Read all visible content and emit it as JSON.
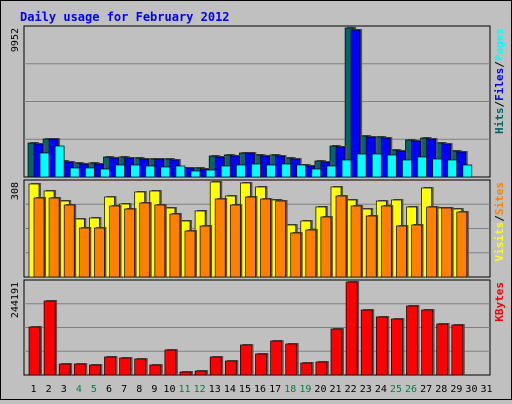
{
  "chart_data": {
    "type": "bar",
    "title": "Daily usage for February 2012",
    "days": [
      "1",
      "2",
      "3",
      "4",
      "5",
      "6",
      "7",
      "8",
      "9",
      "10",
      "11",
      "12",
      "13",
      "14",
      "15",
      "16",
      "17",
      "18",
      "19",
      "20",
      "21",
      "22",
      "23",
      "24",
      "25",
      "26",
      "27",
      "28",
      "29",
      "30",
      "31"
    ],
    "weekend_days": [
      4,
      5,
      11,
      12,
      18,
      19,
      25,
      26
    ],
    "colors": {
      "background": "#c0c0c0",
      "title": "#0000ff",
      "weekday_label": "#000000",
      "weekend_label": "#008040",
      "hits": "#006666",
      "files": "#0000ff",
      "pages": "#00ffff",
      "visits": "#ffff00",
      "sites": "#ff8000",
      "kbytes": "#ff0000",
      "divider": "#777777"
    },
    "panels": [
      {
        "name": "hits-files-pages",
        "max_label": "9952",
        "ymax": 9952,
        "legend": [
          {
            "text": "Hits",
            "color": "#006666"
          },
          {
            "text": "/",
            "color": "#000000"
          },
          {
            "text": "Files",
            "color": "#0000ff"
          },
          {
            "text": "/",
            "color": "#000000"
          },
          {
            "text": "Pages",
            "color": "#00ffff"
          }
        ],
        "series": [
          {
            "name": "Hits",
            "color": "#006666",
            "values": [
              2257,
              2560,
              1040,
              930,
              930,
              1330,
              1330,
              1280,
              1230,
              1180,
              620,
              570,
              1380,
              1480,
              1630,
              1480,
              1480,
              1280,
              810,
              1060,
              2040,
              9952,
              2710,
              2660,
              1780,
              2460,
              2600,
              2260,
              1730,
              0,
              0
            ]
          },
          {
            "name": "Files",
            "color": "#0000ff",
            "values": [
              2200,
              2510,
              1000,
              880,
              880,
              1280,
              1280,
              1230,
              1180,
              1130,
              570,
              520,
              1330,
              1430,
              1580,
              1430,
              1430,
              1230,
              760,
              1010,
              1990,
              9850,
              2660,
              2610,
              1730,
              2410,
              2550,
              2210,
              1680,
              0,
              0
            ]
          },
          {
            "name": "Pages",
            "color": "#00ffff",
            "values": [
              1580,
              2050,
              620,
              570,
              520,
              770,
              770,
              720,
              680,
              720,
              420,
              460,
              720,
              770,
              870,
              820,
              870,
              770,
              530,
              730,
              1160,
              1510,
              1530,
              1480,
              1160,
              1330,
              1230,
              1160,
              820,
              0,
              0
            ]
          }
        ]
      },
      {
        "name": "visits-sites",
        "max_label": "308",
        "ymax": 308,
        "legend": [
          {
            "text": "Visits",
            "color": "#ffff00"
          },
          {
            "text": "/",
            "color": "#000000"
          },
          {
            "text": "Sites",
            "color": "#ff8000"
          }
        ],
        "series": [
          {
            "name": "Visits",
            "color": "#ffff00",
            "values": [
              300,
              280,
              248,
              187,
              190,
              258,
              236,
              276,
              280,
              225,
              180,
              213,
              308,
              264,
              304,
              292,
              250,
              170,
              182,
              228,
              293,
              250,
              219,
              248,
              249,
              227,
              290,
              225,
              220,
              0,
              0
            ]
          },
          {
            "name": "Sites",
            "color": "#ff8000",
            "values": [
              255,
              255,
              232,
              160,
              158,
              229,
              219,
              240,
              234,
              203,
              150,
              166,
              253,
              232,
              260,
              254,
              246,
              144,
              151,
              193,
              264,
              231,
              199,
              231,
              166,
              169,
              227,
              223,
              210,
              0,
              0
            ]
          }
        ]
      },
      {
        "name": "kbytes",
        "max_label": "244191",
        "ymax": 244191,
        "legend": [
          {
            "text": "KBytes",
            "color": "#ff0000"
          }
        ],
        "series": [
          {
            "name": "KBytes",
            "color": "#ff0000",
            "values": [
              125000,
              195000,
              28000,
              30000,
              26000,
              46000,
              44000,
              42000,
              26000,
              66000,
              8000,
              10000,
              46000,
              38000,
              78000,
              54000,
              90000,
              82000,
              32000,
              34000,
              120000,
              244191,
              170000,
              152000,
              148000,
              180000,
              170000,
              134000,
              130000,
              0,
              0
            ]
          }
        ]
      }
    ]
  }
}
